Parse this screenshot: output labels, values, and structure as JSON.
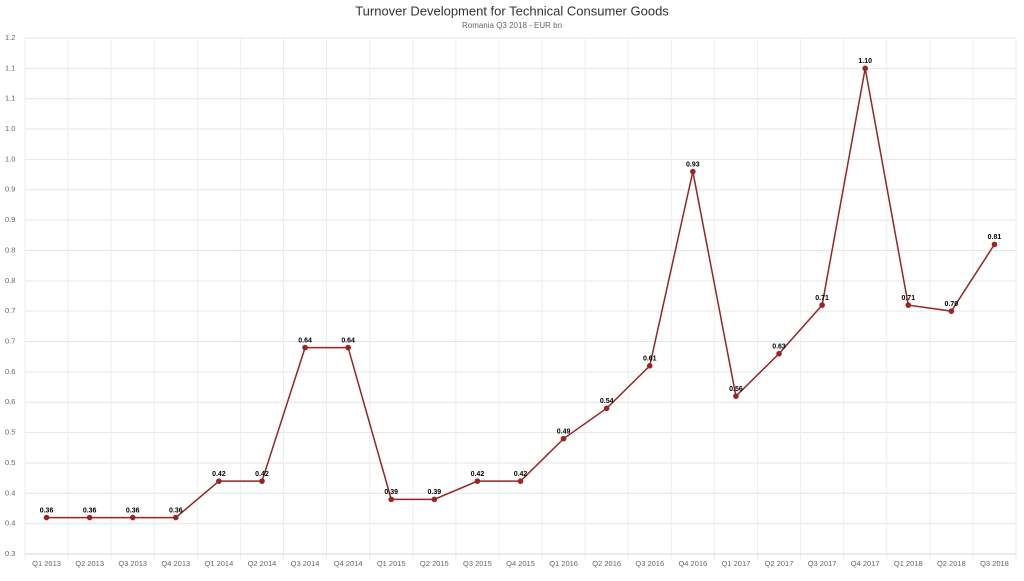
{
  "chart_data": {
    "type": "line",
    "title": "Turnover Development for Technical Consumer Goods",
    "subtitle": "Romania Q3 2018 - EUR bn",
    "categories": [
      "Q1 2013",
      "Q2 2013",
      "Q3 2013",
      "Q4 2013",
      "Q1 2014",
      "Q2 2014",
      "Q3 2014",
      "Q4 2014",
      "Q1 2015",
      "Q2 2015",
      "Q3 2015",
      "Q4 2015",
      "Q1 2016",
      "Q2 2016",
      "Q3 2016",
      "Q4 2016",
      "Q1 2017",
      "Q2 2017",
      "Q3 2017",
      "Q4 2017",
      "Q1 2018",
      "Q2 2018",
      "Q3 2018"
    ],
    "values": [
      0.36,
      0.36,
      0.36,
      0.36,
      0.42,
      0.42,
      0.64,
      0.64,
      0.39,
      0.39,
      0.42,
      0.42,
      0.49,
      0.54,
      0.61,
      0.93,
      0.56,
      0.63,
      0.71,
      1.1,
      0.71,
      0.7,
      0.81
    ],
    "value_labels": [
      "0.36",
      "0.36",
      "0.36",
      "0.36",
      "0.42",
      "0.42",
      "0.64",
      "0.64",
      "0.39",
      "0.39",
      "0.42",
      "0.42",
      "0.49",
      "0.54",
      "0.61",
      "0.93",
      "0.56",
      "0.63",
      "0.71",
      "1.10",
      "0.71",
      "0.70",
      "0.81"
    ],
    "color": "#9b2323",
    "ylim": [
      0.3,
      1.15
    ],
    "yticks": [
      {
        "value": 0.3,
        "label": "0.3"
      },
      {
        "value": 0.35,
        "label": "0.4"
      },
      {
        "value": 0.4,
        "label": "0.4"
      },
      {
        "value": 0.45,
        "label": "0.5"
      },
      {
        "value": 0.5,
        "label": "0.5"
      },
      {
        "value": 0.55,
        "label": "0.6"
      },
      {
        "value": 0.6,
        "label": "0.6"
      },
      {
        "value": 0.65,
        "label": "0.7"
      },
      {
        "value": 0.7,
        "label": "0.7"
      },
      {
        "value": 0.75,
        "label": "0.8"
      },
      {
        "value": 0.8,
        "label": "0.8"
      },
      {
        "value": 0.85,
        "label": "0.9"
      },
      {
        "value": 0.9,
        "label": "0.9"
      },
      {
        "value": 0.95,
        "label": "1.0"
      },
      {
        "value": 1.0,
        "label": "1.0"
      },
      {
        "value": 1.05,
        "label": "1.1"
      },
      {
        "value": 1.1,
        "label": "1.1"
      },
      {
        "value": 1.15,
        "label": "1.2"
      }
    ],
    "grid": true
  }
}
